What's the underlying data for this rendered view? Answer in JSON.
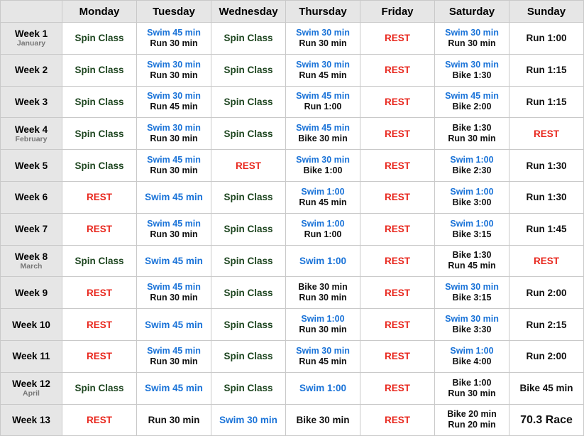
{
  "colors": {
    "spin": "#1e4620",
    "swim": "#1a73d8",
    "rest": "#e8261c",
    "default": "#111111",
    "header_bg": "#e6e6e6",
    "grid": "#c9c9c9"
  },
  "days": [
    "Monday",
    "Tuesday",
    "Wednesday",
    "Thursday",
    "Friday",
    "Saturday",
    "Sunday"
  ],
  "weeks": [
    {
      "label": "Week 1",
      "month": "January",
      "cells": [
        [
          [
            "Spin Class",
            "spin"
          ]
        ],
        [
          [
            "Swim 45 min",
            "swim"
          ],
          [
            "Run 30 min",
            "black"
          ]
        ],
        [
          [
            "Spin Class",
            "spin"
          ]
        ],
        [
          [
            "Swim 30 min",
            "swim"
          ],
          [
            "Run 30 min",
            "black"
          ]
        ],
        [
          [
            "REST",
            "rest"
          ]
        ],
        [
          [
            "Swim 30 min",
            "swim"
          ],
          [
            "Run 30 min",
            "black"
          ]
        ],
        [
          [
            "Run 1:00",
            "black"
          ]
        ]
      ]
    },
    {
      "label": "Week 2",
      "month": "",
      "cells": [
        [
          [
            "Spin Class",
            "spin"
          ]
        ],
        [
          [
            "Swim 30 min",
            "swim"
          ],
          [
            "Run 30 min",
            "black"
          ]
        ],
        [
          [
            "Spin Class",
            "spin"
          ]
        ],
        [
          [
            "Swim 30 min",
            "swim"
          ],
          [
            "Run 45 min",
            "black"
          ]
        ],
        [
          [
            "REST",
            "rest"
          ]
        ],
        [
          [
            "Swim 30 min",
            "swim"
          ],
          [
            "Bike 1:30",
            "black"
          ]
        ],
        [
          [
            "Run 1:15",
            "black"
          ]
        ]
      ]
    },
    {
      "label": "Week 3",
      "month": "",
      "cells": [
        [
          [
            "Spin Class",
            "spin"
          ]
        ],
        [
          [
            "Swim 30 min",
            "swim"
          ],
          [
            "Run 45 min",
            "black"
          ]
        ],
        [
          [
            "Spin Class",
            "spin"
          ]
        ],
        [
          [
            "Swim 45 min",
            "swim"
          ],
          [
            "Run 1:00",
            "black"
          ]
        ],
        [
          [
            "REST",
            "rest"
          ]
        ],
        [
          [
            "Swim 45 min",
            "swim"
          ],
          [
            "Bike 2:00",
            "black"
          ]
        ],
        [
          [
            "Run 1:15",
            "black"
          ]
        ]
      ]
    },
    {
      "label": "Week 4",
      "month": "February",
      "cells": [
        [
          [
            "Spin Class",
            "spin"
          ]
        ],
        [
          [
            "Swim 30 min",
            "swim"
          ],
          [
            "Run 30 min",
            "black"
          ]
        ],
        [
          [
            "Spin Class",
            "spin"
          ]
        ],
        [
          [
            "Swim 45 min",
            "swim"
          ],
          [
            "Bike 30 min",
            "black"
          ]
        ],
        [
          [
            "REST",
            "rest"
          ]
        ],
        [
          [
            "Bike 1:30",
            "black"
          ],
          [
            "Run 30 min",
            "black"
          ]
        ],
        [
          [
            "REST",
            "rest"
          ]
        ]
      ]
    },
    {
      "label": "Week 5",
      "month": "",
      "cells": [
        [
          [
            "Spin Class",
            "spin"
          ]
        ],
        [
          [
            "Swim 45 min",
            "swim"
          ],
          [
            "Run 30 min",
            "black"
          ]
        ],
        [
          [
            "REST",
            "rest"
          ]
        ],
        [
          [
            "Swim 30 min",
            "swim"
          ],
          [
            "Bike 1:00",
            "black"
          ]
        ],
        [
          [
            "REST",
            "rest"
          ]
        ],
        [
          [
            "Swim 1:00",
            "swim"
          ],
          [
            "Bike 2:30",
            "black"
          ]
        ],
        [
          [
            "Run 1:30",
            "black"
          ]
        ]
      ]
    },
    {
      "label": "Week 6",
      "month": "",
      "cells": [
        [
          [
            "REST",
            "rest"
          ]
        ],
        [
          [
            "Swim 45 min",
            "swim"
          ]
        ],
        [
          [
            "Spin Class",
            "spin"
          ]
        ],
        [
          [
            "Swim 1:00",
            "swim"
          ],
          [
            "Run 45 min",
            "black"
          ]
        ],
        [
          [
            "REST",
            "rest"
          ]
        ],
        [
          [
            "Swim 1:00",
            "swim"
          ],
          [
            "Bike 3:00",
            "black"
          ]
        ],
        [
          [
            "Run 1:30",
            "black"
          ]
        ]
      ]
    },
    {
      "label": "Week 7",
      "month": "",
      "cells": [
        [
          [
            "REST",
            "rest"
          ]
        ],
        [
          [
            "Swim 45 min",
            "swim"
          ],
          [
            "Run 30 min",
            "black"
          ]
        ],
        [
          [
            "Spin Class",
            "spin"
          ]
        ],
        [
          [
            "Swim 1:00",
            "swim"
          ],
          [
            "Run 1:00",
            "black"
          ]
        ],
        [
          [
            "REST",
            "rest"
          ]
        ],
        [
          [
            "Swim 1:00",
            "swim"
          ],
          [
            "Bike 3:15",
            "black"
          ]
        ],
        [
          [
            "Run 1:45",
            "black"
          ]
        ]
      ]
    },
    {
      "label": "Week 8",
      "month": "March",
      "cells": [
        [
          [
            "Spin Class",
            "spin"
          ]
        ],
        [
          [
            "Swim 45 min",
            "swim"
          ]
        ],
        [
          [
            "Spin Class",
            "spin"
          ]
        ],
        [
          [
            "Swim 1:00",
            "swim"
          ]
        ],
        [
          [
            "REST",
            "rest"
          ]
        ],
        [
          [
            "Bike 1:30",
            "black"
          ],
          [
            "Run 45 min",
            "black"
          ]
        ],
        [
          [
            "REST",
            "rest"
          ]
        ]
      ]
    },
    {
      "label": "Week 9",
      "month": "",
      "cells": [
        [
          [
            "REST",
            "rest"
          ]
        ],
        [
          [
            "Swim 45 min",
            "swim"
          ],
          [
            "Run 30 min",
            "black"
          ]
        ],
        [
          [
            "Spin Class",
            "spin"
          ]
        ],
        [
          [
            "Bike 30 min",
            "black"
          ],
          [
            "Run 30 min",
            "black"
          ]
        ],
        [
          [
            "REST",
            "rest"
          ]
        ],
        [
          [
            "Swim 30 min",
            "swim"
          ],
          [
            "Bike 3:15",
            "black"
          ]
        ],
        [
          [
            "Run 2:00",
            "black"
          ]
        ]
      ]
    },
    {
      "label": "Week 10",
      "month": "",
      "cells": [
        [
          [
            "REST",
            "rest"
          ]
        ],
        [
          [
            "Swim 45 min",
            "swim"
          ]
        ],
        [
          [
            "Spin Class",
            "spin"
          ]
        ],
        [
          [
            "Swim 1:00",
            "swim"
          ],
          [
            "Run 30 min",
            "black"
          ]
        ],
        [
          [
            "REST",
            "rest"
          ]
        ],
        [
          [
            "Swim 30 min",
            "swim"
          ],
          [
            "Bike 3:30",
            "black"
          ]
        ],
        [
          [
            "Run 2:15",
            "black"
          ]
        ]
      ]
    },
    {
      "label": "Week 11",
      "month": "",
      "cells": [
        [
          [
            "REST",
            "rest"
          ]
        ],
        [
          [
            "Swim 45 min",
            "swim"
          ],
          [
            "Run 30 min",
            "black"
          ]
        ],
        [
          [
            "Spin Class",
            "spin"
          ]
        ],
        [
          [
            "Swim 30 min",
            "swim"
          ],
          [
            "Run 45 min",
            "black"
          ]
        ],
        [
          [
            "REST",
            "rest"
          ]
        ],
        [
          [
            "Swim 1:00",
            "swim"
          ],
          [
            "Bike 4:00",
            "black"
          ]
        ],
        [
          [
            "Run 2:00",
            "black"
          ]
        ]
      ]
    },
    {
      "label": "Week 12",
      "month": "April",
      "cells": [
        [
          [
            "Spin Class",
            "spin"
          ]
        ],
        [
          [
            "Swim 45 min",
            "swim"
          ]
        ],
        [
          [
            "Spin Class",
            "spin"
          ]
        ],
        [
          [
            "Swim 1:00",
            "swim"
          ]
        ],
        [
          [
            "REST",
            "rest"
          ]
        ],
        [
          [
            "Bike 1:00",
            "black"
          ],
          [
            "Run 30 min",
            "black"
          ]
        ],
        [
          [
            "Bike 45 min",
            "black"
          ]
        ]
      ]
    },
    {
      "label": "Week 13",
      "month": "",
      "cells": [
        [
          [
            "REST",
            "rest"
          ]
        ],
        [
          [
            "Run 30 min",
            "black"
          ]
        ],
        [
          [
            "Swim 30 min",
            "swim"
          ]
        ],
        [
          [
            "Bike 30 min",
            "black"
          ]
        ],
        [
          [
            "REST",
            "rest"
          ]
        ],
        [
          [
            "Bike 20 min",
            "black"
          ],
          [
            "Run 20 min",
            "black"
          ]
        ],
        [
          [
            "70.3 Race",
            "big"
          ]
        ]
      ]
    }
  ]
}
